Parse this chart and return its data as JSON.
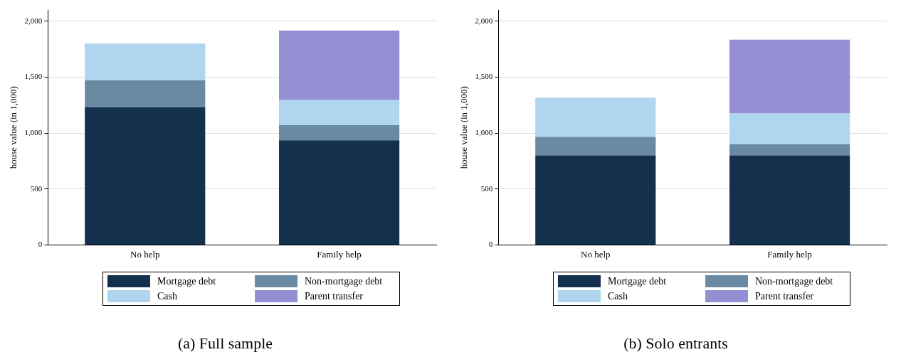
{
  "chart_data": [
    {
      "type": "bar",
      "title": "(a) Full sample",
      "ylabel": "house value (in 1,000)",
      "categories": [
        "No help",
        "Family help"
      ],
      "stacked": true,
      "ylim": [
        0,
        2100
      ],
      "yticks": [
        {
          "value": 0,
          "label": "0"
        },
        {
          "value": 500,
          "label": "500"
        },
        {
          "value": 1000,
          "label": "1,000"
        },
        {
          "value": 1500,
          "label": "1,500"
        },
        {
          "value": 2000,
          "label": "2,000"
        }
      ],
      "grid": "y",
      "legend": "bottom",
      "series": [
        {
          "name": "Mortgage debt",
          "color": "#13304d",
          "values": [
            1230,
            935
          ]
        },
        {
          "name": "Non-mortgage debt",
          "color": "#6a8aa3",
          "values": [
            240,
            135
          ]
        },
        {
          "name": "Cash",
          "color": "#afd6ee",
          "values": [
            330,
            225
          ]
        },
        {
          "name": "Parent transfer",
          "color": "#948fd2",
          "values": [
            null,
            620
          ]
        }
      ]
    },
    {
      "type": "bar",
      "title": "(b) Solo entrants",
      "ylabel": "house value (in 1,000)",
      "categories": [
        "No help",
        "Family help"
      ],
      "stacked": true,
      "ylim": [
        0,
        2100
      ],
      "yticks": [
        {
          "value": 0,
          "label": "0"
        },
        {
          "value": 500,
          "label": "500"
        },
        {
          "value": 1000,
          "label": "1,000"
        },
        {
          "value": 1500,
          "label": "1,500"
        },
        {
          "value": 2000,
          "label": "2,000"
        }
      ],
      "grid": "y",
      "legend": "bottom",
      "series": [
        {
          "name": "Mortgage debt",
          "color": "#13304d",
          "values": [
            800,
            800
          ]
        },
        {
          "name": "Non-mortgage debt",
          "color": "#6a8aa3",
          "values": [
            165,
            100
          ]
        },
        {
          "name": "Cash",
          "color": "#afd6ee",
          "values": [
            350,
            275
          ]
        },
        {
          "name": "Parent transfer",
          "color": "#948fd2",
          "values": [
            null,
            660
          ]
        }
      ]
    }
  ]
}
